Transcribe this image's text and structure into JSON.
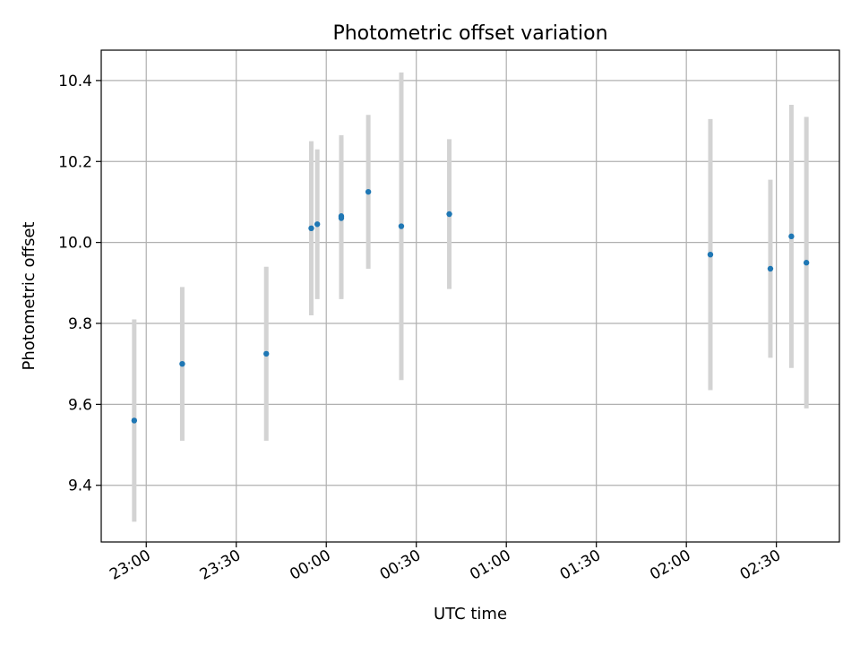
{
  "chart_data": {
    "type": "scatter",
    "title": "Photometric offset variation",
    "xlabel": "UTC time",
    "ylabel": "Photometric offset",
    "x_tick_labels": [
      "23:00",
      "23:30",
      "00:00",
      "00:30",
      "01:00",
      "01:30",
      "02:00",
      "02:30"
    ],
    "y_tick_labels": [
      "9.4",
      "9.6",
      "9.8",
      "10.0",
      "10.2",
      "10.4"
    ],
    "grid": true,
    "xlim": [
      "22:45",
      "02:51"
    ],
    "ylim": [
      9.26,
      10.475
    ],
    "points": [
      {
        "t": "22:56",
        "y": 9.56,
        "err": 0.25
      },
      {
        "t": "23:12",
        "y": 9.7,
        "err": 0.19
      },
      {
        "t": "23:40",
        "y": 9.725,
        "err": 0.215
      },
      {
        "t": "23:55",
        "y": 10.035,
        "err": 0.215
      },
      {
        "t": "23:57",
        "y": 10.045,
        "err": 0.185
      },
      {
        "t": "00:05",
        "y": 10.065,
        "err": 0.2
      },
      {
        "t": "00:05",
        "y": 10.06,
        "err": 0.2
      },
      {
        "t": "00:14",
        "y": 10.125,
        "err": 0.19
      },
      {
        "t": "00:25",
        "y": 10.04,
        "err": 0.38
      },
      {
        "t": "00:41",
        "y": 10.07,
        "err": 0.185
      },
      {
        "t": "02:08",
        "y": 9.97,
        "err": 0.335
      },
      {
        "t": "02:28",
        "y": 9.935,
        "err": 0.22
      },
      {
        "t": "02:35",
        "y": 10.015,
        "err": 0.325
      },
      {
        "t": "02:40",
        "y": 9.95,
        "err": 0.36
      }
    ],
    "colors": {
      "point": "#1f77b4",
      "errorbar": "#d3d3d3",
      "grid": "#b0b0b0",
      "axes": "#000000"
    }
  }
}
